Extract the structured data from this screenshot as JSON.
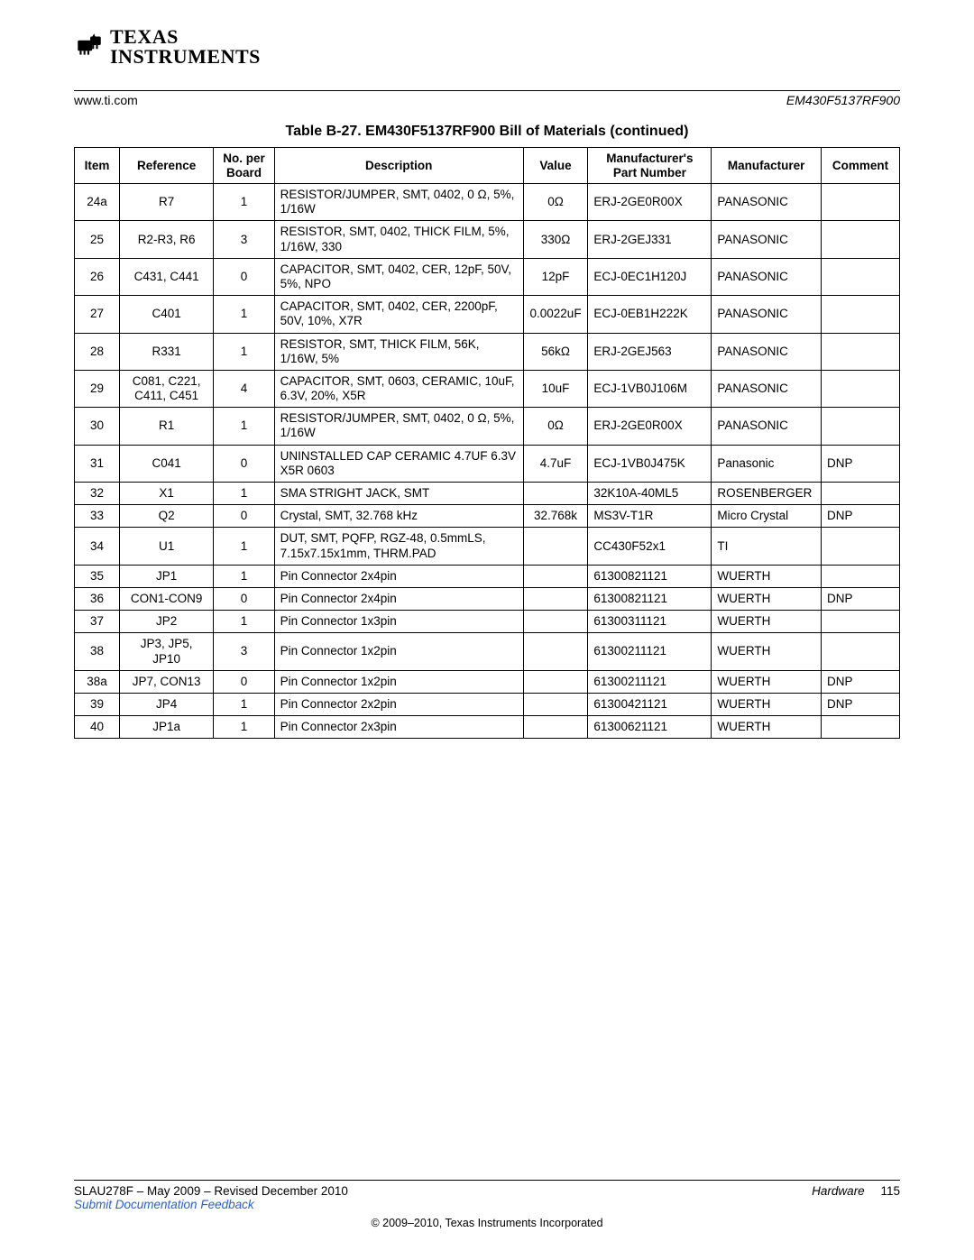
{
  "logo": {
    "line1": "TEXAS",
    "line2": "INSTRUMENTS"
  },
  "header": {
    "left": "www.ti.com",
    "right": "EM430F5137RF900"
  },
  "table": {
    "title": "Table B-27. EM430F5137RF900 Bill of Materials  (continued)",
    "columns": [
      "Item",
      "Reference",
      "No. per Board",
      "Description",
      "Value",
      "Manufacturer's Part Number",
      "Manufacturer",
      "Comment"
    ],
    "rows": [
      [
        "24a",
        "R7",
        "1",
        "RESISTOR/JUMPER, SMT, 0402, 0 Ω, 5%, 1/16W",
        "0Ω",
        "ERJ-2GE0R00X",
        "PANASONIC",
        ""
      ],
      [
        "25",
        "R2-R3, R6",
        "3",
        "RESISTOR, SMT, 0402, THICK FILM, 5%, 1/16W, 330",
        "330Ω",
        "ERJ-2GEJ331",
        "PANASONIC",
        ""
      ],
      [
        "26",
        "C431, C441",
        "0",
        "CAPACITOR, SMT, 0402, CER, 12pF, 50V, 5%, NPO",
        "12pF",
        "ECJ-0EC1H120J",
        "PANASONIC",
        ""
      ],
      [
        "27",
        "C401",
        "1",
        "CAPACITOR, SMT, 0402, CER, 2200pF, 50V, 10%, X7R",
        "0.0022uF",
        "ECJ-0EB1H222K",
        "PANASONIC",
        ""
      ],
      [
        "28",
        "R331",
        "1",
        "RESISTOR, SMT, THICK FILM, 56K, 1/16W, 5%",
        "56kΩ",
        "ERJ-2GEJ563",
        "PANASONIC",
        ""
      ],
      [
        "29",
        "C081, C221, C411, C451",
        "4",
        "CAPACITOR, SMT, 0603, CERAMIC, 10uF, 6.3V, 20%, X5R",
        "10uF",
        "ECJ-1VB0J106M",
        "PANASONIC",
        ""
      ],
      [
        "30",
        "R1",
        "1",
        "RESISTOR/JUMPER, SMT, 0402, 0 Ω, 5%, 1/16W",
        "0Ω",
        "ERJ-2GE0R00X",
        "PANASONIC",
        ""
      ],
      [
        "31",
        "C041",
        "0",
        "UNINSTALLED CAP CERAMIC 4.7UF 6.3V X5R 0603",
        "4.7uF",
        "ECJ-1VB0J475K",
        "Panasonic",
        "DNP"
      ],
      [
        "32",
        "X1",
        "1",
        "SMA STRIGHT JACK, SMT",
        "",
        "32K10A-40ML5",
        "ROSENBERGER",
        ""
      ],
      [
        "33",
        "Q2",
        "0",
        "Crystal, SMT, 32.768 kHz",
        "32.768k",
        "MS3V-T1R",
        "Micro Crystal",
        "DNP"
      ],
      [
        "34",
        "U1",
        "1",
        "DUT, SMT, PQFP, RGZ-48, 0.5mmLS, 7.15x7.15x1mm, THRM.PAD",
        "",
        "CC430F52x1",
        "TI",
        ""
      ],
      [
        "35",
        "JP1",
        "1",
        "Pin Connector 2x4pin",
        "",
        "61300821121",
        "WUERTH",
        ""
      ],
      [
        "36",
        "CON1-CON9",
        "0",
        "Pin Connector 2x4pin",
        "",
        "61300821121",
        "WUERTH",
        "DNP"
      ],
      [
        "37",
        "JP2",
        "1",
        "Pin Connector 1x3pin",
        "",
        "61300311121",
        "WUERTH",
        ""
      ],
      [
        "38",
        "JP3, JP5, JP10",
        "3",
        "Pin Connector 1x2pin",
        "",
        "61300211121",
        "WUERTH",
        ""
      ],
      [
        "38a",
        "JP7, CON13",
        "0",
        "Pin Connector 1x2pin",
        "",
        "61300211121",
        "WUERTH",
        "DNP"
      ],
      [
        "39",
        "JP4",
        "1",
        "Pin Connector 2x2pin",
        "",
        "61300421121",
        "WUERTH",
        "DNP"
      ],
      [
        "40",
        "JP1a",
        "1",
        "Pin Connector 2x3pin",
        "",
        "61300621121",
        "WUERTH",
        ""
      ]
    ]
  },
  "footer": {
    "doc_id": "SLAU278F – May 2009 – Revised December 2010",
    "section": "Hardware",
    "page_no": "115",
    "link_text": "Submit Documentation Feedback",
    "copyright": "© 2009–2010, Texas Instruments Incorporated"
  }
}
